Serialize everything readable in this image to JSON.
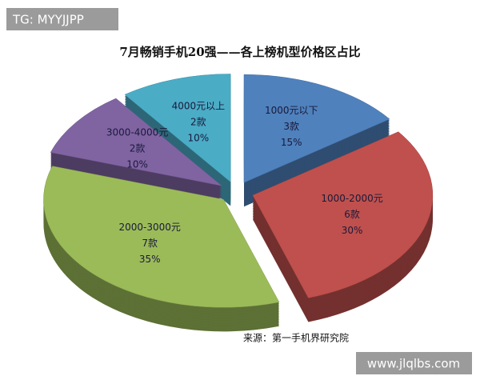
{
  "watermark_top": "TG: MYYJJPP",
  "watermark_bottom": "www.jlqlbs.com",
  "chart_data": {
    "type": "pie",
    "title": "7月畅销手机20强——各上榜机型价格区占比",
    "source": "来源：第一手机界研究院",
    "categories": [
      "1000元以下",
      "1000-2000元",
      "2000-3000元",
      "3000-4000元",
      "4000元以上"
    ],
    "count_labels": [
      "3款",
      "6款",
      "7款",
      "2款",
      "2款"
    ],
    "values": [
      15,
      30,
      35,
      10,
      10
    ],
    "value_labels": [
      "15%",
      "30%",
      "35%",
      "10%",
      "10%"
    ],
    "colors": [
      "#4f81bd",
      "#c0504d",
      "#9bbb59",
      "#8064a2",
      "#4bacc6"
    ]
  }
}
